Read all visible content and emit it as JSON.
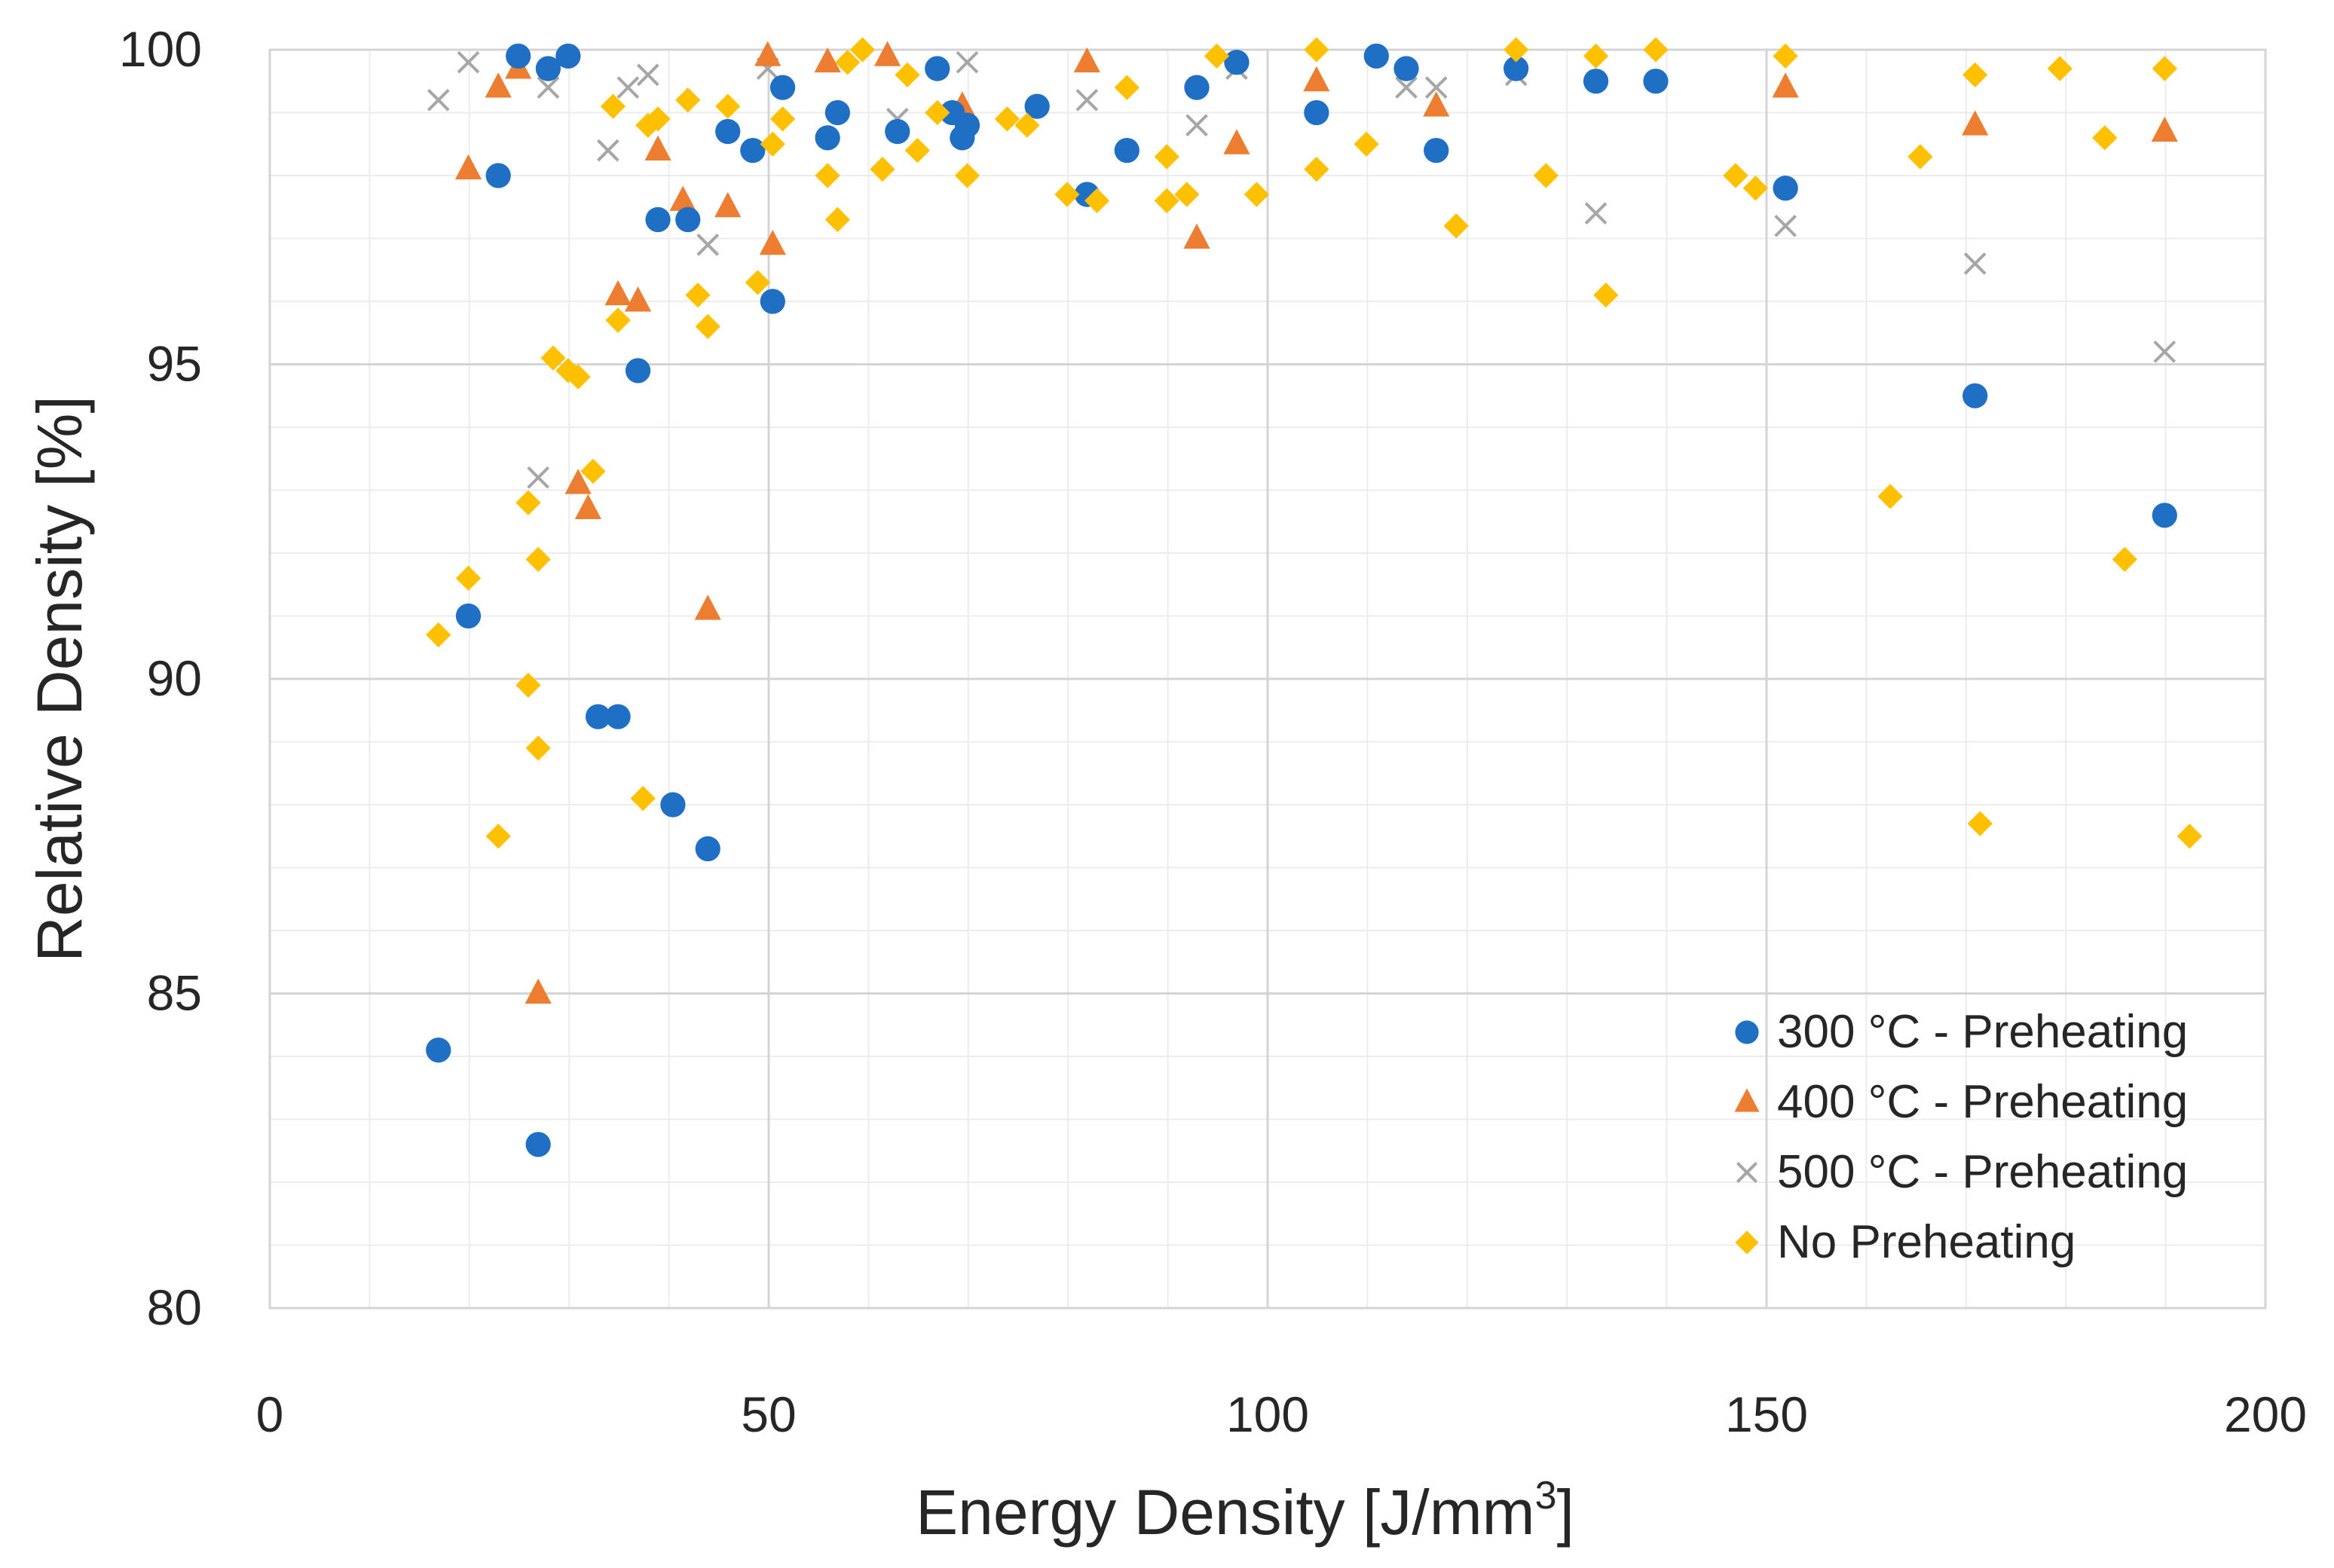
{
  "chart_data": {
    "type": "scatter",
    "title": "",
    "xlabel": "Energy Density [J/mm",
    "xlabel_sup": "3",
    "xlabel_suffix": "]",
    "ylabel": "Relative Density [%]",
    "xlim": [
      0,
      200
    ],
    "ylim": [
      80,
      100
    ],
    "x_ticks": [
      0,
      50,
      100,
      150,
      200
    ],
    "y_ticks": [
      80,
      85,
      90,
      95,
      100
    ],
    "x_tick_labels": [
      "0",
      "50",
      "100",
      "150",
      "200"
    ],
    "y_tick_labels": [
      "80",
      "85",
      "90",
      "95",
      "100"
    ],
    "x_minor_step": 10,
    "y_minor_step": 1,
    "grid": true,
    "legend_position": "bottom-right",
    "series": [
      {
        "name": "300 °C - Preheating",
        "marker": "circle",
        "color": "#1f6fc5",
        "points": [
          [
            16.9,
            84.1
          ],
          [
            19.9,
            91.0
          ],
          [
            22.9,
            98.0
          ],
          [
            26.9,
            82.6
          ],
          [
            24.9,
            99.9
          ],
          [
            27.9,
            99.7
          ],
          [
            29.9,
            99.9
          ],
          [
            32.9,
            89.4
          ],
          [
            34.9,
            89.4
          ],
          [
            36.9,
            94.9
          ],
          [
            38.9,
            97.3
          ],
          [
            41.9,
            97.3
          ],
          [
            40.4,
            88.0
          ],
          [
            43.9,
            87.3
          ],
          [
            45.9,
            98.7
          ],
          [
            48.4,
            98.4
          ],
          [
            50.4,
            96.0
          ],
          [
            51.4,
            99.4
          ],
          [
            55.9,
            98.6
          ],
          [
            56.9,
            99.0
          ],
          [
            62.9,
            98.7
          ],
          [
            66.9,
            99.7
          ],
          [
            68.4,
            99.0
          ],
          [
            69.4,
            98.6
          ],
          [
            69.9,
            98.8
          ],
          [
            76.9,
            99.1
          ],
          [
            81.9,
            97.7
          ],
          [
            85.9,
            98.4
          ],
          [
            92.9,
            99.4
          ],
          [
            96.9,
            99.8
          ],
          [
            104.9,
            99.0
          ],
          [
            110.9,
            99.9
          ],
          [
            113.9,
            99.7
          ],
          [
            116.9,
            98.4
          ],
          [
            124.9,
            99.7
          ],
          [
            132.9,
            99.5
          ],
          [
            138.9,
            99.5
          ],
          [
            151.9,
            97.8
          ],
          [
            170.9,
            94.5
          ],
          [
            189.9,
            92.6
          ]
        ]
      },
      {
        "name": "400 °C - Preheating",
        "marker": "triangle",
        "color": "#ed7d31",
        "points": [
          [
            19.9,
            98.1
          ],
          [
            22.9,
            99.4
          ],
          [
            24.9,
            99.7
          ],
          [
            26.9,
            85.0
          ],
          [
            30.9,
            93.1
          ],
          [
            31.9,
            92.7
          ],
          [
            34.9,
            96.1
          ],
          [
            36.9,
            96.0
          ],
          [
            38.9,
            98.4
          ],
          [
            41.4,
            97.6
          ],
          [
            43.9,
            91.1
          ],
          [
            45.9,
            97.5
          ],
          [
            50.4,
            96.9
          ],
          [
            49.9,
            99.9
          ],
          [
            55.9,
            99.8
          ],
          [
            61.9,
            99.9
          ],
          [
            69.4,
            99.1
          ],
          [
            81.9,
            99.8
          ],
          [
            92.9,
            97.0
          ],
          [
            96.9,
            98.5
          ],
          [
            104.9,
            99.5
          ],
          [
            116.9,
            99.1
          ],
          [
            151.9,
            99.4
          ],
          [
            170.9,
            98.8
          ],
          [
            189.9,
            98.7
          ]
        ]
      },
      {
        "name": "500 °C - Preheating",
        "marker": "cross",
        "color": "#a6a6a6",
        "points": [
          [
            16.9,
            99.2
          ],
          [
            19.9,
            99.8
          ],
          [
            26.9,
            93.2
          ],
          [
            27.9,
            99.4
          ],
          [
            33.9,
            98.4
          ],
          [
            35.9,
            99.4
          ],
          [
            37.9,
            99.6
          ],
          [
            43.9,
            96.9
          ],
          [
            49.9,
            99.7
          ],
          [
            62.9,
            98.9
          ],
          [
            69.9,
            99.8
          ],
          [
            81.9,
            99.2
          ],
          [
            92.9,
            98.8
          ],
          [
            96.9,
            99.7
          ],
          [
            113.9,
            99.4
          ],
          [
            116.9,
            99.4
          ],
          [
            124.9,
            99.6
          ],
          [
            132.9,
            97.4
          ],
          [
            151.9,
            97.2
          ],
          [
            170.9,
            96.6
          ],
          [
            189.9,
            95.2
          ]
        ]
      },
      {
        "name": "No Preheating",
        "marker": "diamond",
        "color": "#ffc000",
        "points": [
          [
            16.9,
            90.7
          ],
          [
            19.9,
            91.6
          ],
          [
            22.9,
            87.5
          ],
          [
            25.9,
            92.8
          ],
          [
            25.9,
            89.9
          ],
          [
            26.9,
            91.9
          ],
          [
            26.9,
            88.9
          ],
          [
            28.4,
            95.1
          ],
          [
            29.9,
            94.9
          ],
          [
            30.9,
            94.8
          ],
          [
            32.4,
            93.3
          ],
          [
            34.4,
            99.1
          ],
          [
            34.9,
            95.7
          ],
          [
            37.4,
            88.1
          ],
          [
            37.9,
            98.8
          ],
          [
            38.9,
            98.9
          ],
          [
            41.9,
            99.2
          ],
          [
            42.9,
            96.1
          ],
          [
            43.9,
            95.6
          ],
          [
            45.9,
            99.1
          ],
          [
            48.9,
            96.3
          ],
          [
            50.4,
            98.5
          ],
          [
            51.4,
            98.9
          ],
          [
            55.9,
            98.0
          ],
          [
            56.9,
            97.3
          ],
          [
            57.9,
            99.8
          ],
          [
            59.4,
            100.0
          ],
          [
            61.4,
            98.1
          ],
          [
            63.9,
            99.6
          ],
          [
            64.9,
            98.4
          ],
          [
            66.9,
            99.0
          ],
          [
            69.9,
            98.0
          ],
          [
            73.9,
            98.9
          ],
          [
            75.9,
            98.8
          ],
          [
            79.9,
            97.7
          ],
          [
            82.9,
            97.6
          ],
          [
            85.9,
            99.4
          ],
          [
            89.9,
            98.3
          ],
          [
            89.9,
            97.6
          ],
          [
            91.9,
            97.7
          ],
          [
            94.9,
            99.9
          ],
          [
            98.9,
            97.7
          ],
          [
            104.9,
            98.1
          ],
          [
            104.9,
            100.0
          ],
          [
            109.9,
            98.5
          ],
          [
            118.9,
            97.2
          ],
          [
            124.9,
            100.0
          ],
          [
            127.9,
            98.0
          ],
          [
            132.9,
            99.9
          ],
          [
            133.9,
            96.1
          ],
          [
            138.9,
            100.0
          ],
          [
            146.9,
            98.0
          ],
          [
            148.9,
            97.8
          ],
          [
            151.9,
            99.9
          ],
          [
            162.4,
            92.9
          ],
          [
            165.4,
            98.3
          ],
          [
            170.9,
            99.6
          ],
          [
            171.4,
            87.7
          ],
          [
            179.4,
            99.7
          ],
          [
            183.9,
            98.6
          ],
          [
            185.9,
            91.9
          ],
          [
            189.9,
            99.7
          ],
          [
            192.4,
            87.5
          ]
        ]
      }
    ]
  }
}
